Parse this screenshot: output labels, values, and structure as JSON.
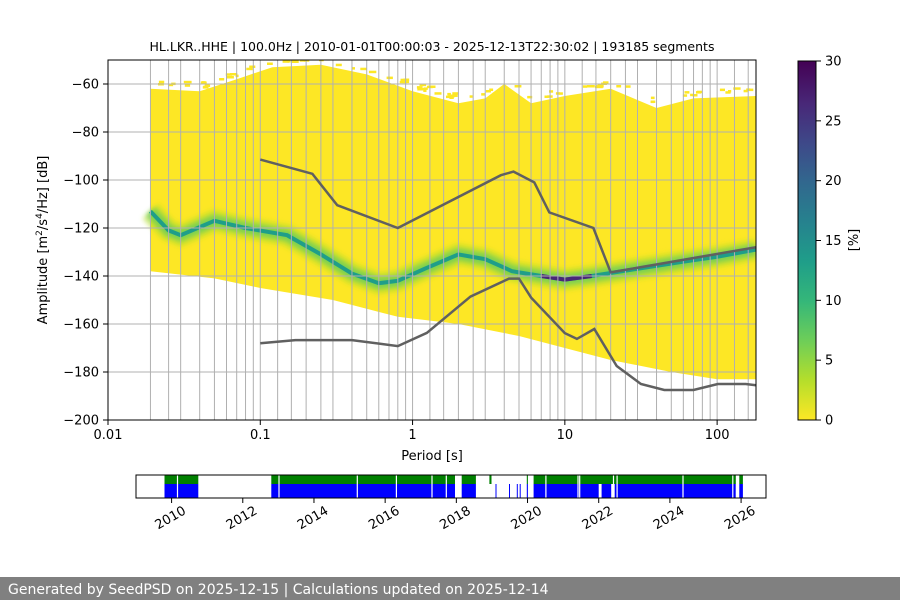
{
  "chart_data": [
    {
      "type": "heatmap",
      "title": "HL.LKR..HHE | 100.0Hz | 2010-01-01T00:00:03 - 2025-12-13T22:30:02 | 193185 segments",
      "xlabel": "Period [s]",
      "ylabel_parts": [
        "Amplitude [m",
        "2",
        "/s",
        "4",
        "/Hz] [dB]"
      ],
      "xscale": "log",
      "xlim": [
        0.01,
        180
      ],
      "ylim": [
        -200,
        -50
      ],
      "grid": true,
      "x_ticks": [
        {
          "value": 0.01,
          "label": "0.01"
        },
        {
          "value": 0.1,
          "label": "0.1"
        },
        {
          "value": 1,
          "label": "1"
        },
        {
          "value": 10,
          "label": "10"
        },
        {
          "value": 100,
          "label": "100"
        }
      ],
      "y_ticks": [
        {
          "value": -60,
          "label": "−60"
        },
        {
          "value": -80,
          "label": "−80"
        },
        {
          "value": -100,
          "label": "−100"
        },
        {
          "value": -120,
          "label": "−120"
        },
        {
          "value": -140,
          "label": "−140"
        },
        {
          "value": -160,
          "label": "−160"
        },
        {
          "value": -180,
          "label": "−180"
        },
        {
          "value": -200,
          "label": "−200"
        }
      ],
      "psd_period_range": [
        0.019,
        180
      ],
      "psd_upper_envelope": [
        {
          "x": 0.019,
          "y": -62
        },
        {
          "x": 0.04,
          "y": -63
        },
        {
          "x": 0.07,
          "y": -58
        },
        {
          "x": 0.12,
          "y": -53
        },
        {
          "x": 0.25,
          "y": -52
        },
        {
          "x": 0.5,
          "y": -56
        },
        {
          "x": 1,
          "y": -63
        },
        {
          "x": 2,
          "y": -68
        },
        {
          "x": 3,
          "y": -66
        },
        {
          "x": 4,
          "y": -60
        },
        {
          "x": 6,
          "y": -68
        },
        {
          "x": 10,
          "y": -65
        },
        {
          "x": 20,
          "y": -62
        },
        {
          "x": 40,
          "y": -70
        },
        {
          "x": 70,
          "y": -66
        },
        {
          "x": 180,
          "y": -65
        }
      ],
      "psd_lower_envelope": [
        {
          "x": 0.019,
          "y": -138
        },
        {
          "x": 0.05,
          "y": -141
        },
        {
          "x": 0.1,
          "y": -145
        },
        {
          "x": 0.3,
          "y": -150
        },
        {
          "x": 0.8,
          "y": -157
        },
        {
          "x": 2,
          "y": -160
        },
        {
          "x": 5,
          "y": -165
        },
        {
          "x": 10,
          "y": -170
        },
        {
          "x": 20,
          "y": -175
        },
        {
          "x": 50,
          "y": -180
        },
        {
          "x": 100,
          "y": -183
        },
        {
          "x": 180,
          "y": -183
        }
      ],
      "psd_mode": [
        {
          "x": 0.019,
          "y": -113
        },
        {
          "x": 0.025,
          "y": -121
        },
        {
          "x": 0.03,
          "y": -123
        },
        {
          "x": 0.05,
          "y": -117
        },
        {
          "x": 0.08,
          "y": -120
        },
        {
          "x": 0.15,
          "y": -123
        },
        {
          "x": 0.25,
          "y": -131
        },
        {
          "x": 0.4,
          "y": -139
        },
        {
          "x": 0.6,
          "y": -143
        },
        {
          "x": 0.8,
          "y": -142
        },
        {
          "x": 1.2,
          "y": -137
        },
        {
          "x": 2,
          "y": -131
        },
        {
          "x": 3,
          "y": -133
        },
        {
          "x": 4.5,
          "y": -138
        },
        {
          "x": 7,
          "y": -140
        },
        {
          "x": 10,
          "y": -141.5
        },
        {
          "x": 15,
          "y": -140
        },
        {
          "x": 30,
          "y": -137
        },
        {
          "x": 60,
          "y": -134
        },
        {
          "x": 100,
          "y": -132
        },
        {
          "x": 180,
          "y": -129
        }
      ],
      "nhnm": [
        {
          "x": 0.1,
          "y": -91.5
        },
        {
          "x": 0.22,
          "y": -97.4
        },
        {
          "x": 0.32,
          "y": -110.5
        },
        {
          "x": 0.8,
          "y": -120
        },
        {
          "x": 3.8,
          "y": -98
        },
        {
          "x": 4.6,
          "y": -96.5
        },
        {
          "x": 6.3,
          "y": -101
        },
        {
          "x": 7.9,
          "y": -113.5
        },
        {
          "x": 15.4,
          "y": -120
        },
        {
          "x": 20,
          "y": -138.5
        },
        {
          "x": 180,
          "y": -128
        }
      ],
      "nlnm": [
        {
          "x": 0.1,
          "y": -168
        },
        {
          "x": 0.17,
          "y": -166.7
        },
        {
          "x": 0.4,
          "y": -166.7
        },
        {
          "x": 0.8,
          "y": -169.2
        },
        {
          "x": 1.24,
          "y": -163.7
        },
        {
          "x": 2.4,
          "y": -148.6
        },
        {
          "x": 4.3,
          "y": -141.1
        },
        {
          "x": 5,
          "y": -141.1
        },
        {
          "x": 6,
          "y": -149
        },
        {
          "x": 10,
          "y": -163.8
        },
        {
          "x": 12,
          "y": -166.2
        },
        {
          "x": 15.6,
          "y": -162.1
        },
        {
          "x": 21.9,
          "y": -177.5
        },
        {
          "x": 31.6,
          "y": -185
        },
        {
          "x": 45,
          "y": -187.5
        },
        {
          "x": 70,
          "y": -187.5
        },
        {
          "x": 101,
          "y": -185
        },
        {
          "x": 154,
          "y": -185
        },
        {
          "x": 180,
          "y": -185.5
        }
      ],
      "vertical_period_lines": [
        0.019,
        0.025,
        0.03,
        0.04,
        0.05,
        0.06,
        0.07,
        0.08,
        0.09,
        0.1,
        0.13,
        0.16,
        0.2,
        0.25,
        0.3,
        0.4,
        0.5,
        0.6,
        0.7,
        0.8,
        0.9,
        1,
        1.3,
        1.6,
        2,
        2.5,
        3,
        4,
        5,
        6,
        7,
        8,
        9,
        10,
        13,
        16,
        20,
        25,
        30,
        40,
        50,
        60,
        70,
        80,
        90,
        100,
        130,
        160
      ]
    },
    {
      "type": "colorbar",
      "label": "[%]",
      "range": [
        0,
        30
      ],
      "ticks": [
        {
          "value": 0,
          "label": "0"
        },
        {
          "value": 5,
          "label": "5"
        },
        {
          "value": 10,
          "label": "10"
        },
        {
          "value": 15,
          "label": "15"
        },
        {
          "value": 20,
          "label": "20"
        },
        {
          "value": 25,
          "label": "25"
        },
        {
          "value": 30,
          "label": "30"
        }
      ],
      "colormap": [
        "#fde725",
        "#b5de2b",
        "#6ece58",
        "#35b779",
        "#1f9e89",
        "#26828e",
        "#31688e",
        "#3e4989",
        "#482878",
        "#440154"
      ]
    },
    {
      "type": "timeline",
      "x_range_years": [
        2009.0,
        2026.7
      ],
      "x_ticks": [
        {
          "value": 2010,
          "label": "2010"
        },
        {
          "value": 2012,
          "label": "2012"
        },
        {
          "value": 2014,
          "label": "2014"
        },
        {
          "value": 2016,
          "label": "2016"
        },
        {
          "value": 2018,
          "label": "2018"
        },
        {
          "value": 2020,
          "label": "2020"
        },
        {
          "value": 2022,
          "label": "2022"
        },
        {
          "value": 2024,
          "label": "2024"
        },
        {
          "value": 2026,
          "label": "2026"
        }
      ],
      "colors": {
        "available": "#008000",
        "processed": "#0000ff"
      },
      "available_spans": [
        [
          2009.8,
          2010.75
        ],
        [
          2012.8,
          2017.96
        ],
        [
          2018.15,
          2018.55
        ],
        [
          2018.93,
          2018.99
        ],
        [
          2019.98,
          2020.01
        ],
        [
          2020.17,
          2025.85
        ],
        [
          2025.95,
          2026.05
        ]
      ],
      "processed_spans": [
        [
          2009.8,
          2010.75
        ],
        [
          2012.8,
          2017.96
        ],
        [
          2018.15,
          2018.55
        ],
        [
          2019.1,
          2019.12
        ],
        [
          2019.48,
          2019.5
        ],
        [
          2019.7,
          2019.72
        ],
        [
          2019.78,
          2019.8
        ],
        [
          2019.98,
          2020.01
        ],
        [
          2020.17,
          2022.0
        ],
        [
          2022.08,
          2022.35
        ],
        [
          2022.45,
          2025.85
        ],
        [
          2025.95,
          2026.05
        ]
      ],
      "gaps": [
        2010.15,
        2013.0,
        2015.2,
        2016.3,
        2017.3,
        2017.7,
        2018.1,
        2020.5,
        2021.4,
        2021.45,
        2022.4,
        2022.5,
        2024.35,
        2025.75
      ]
    }
  ],
  "footer": {
    "text": "Generated by SeedPSD on 2025-12-15 | Calculations updated on 2025-12-14"
  }
}
